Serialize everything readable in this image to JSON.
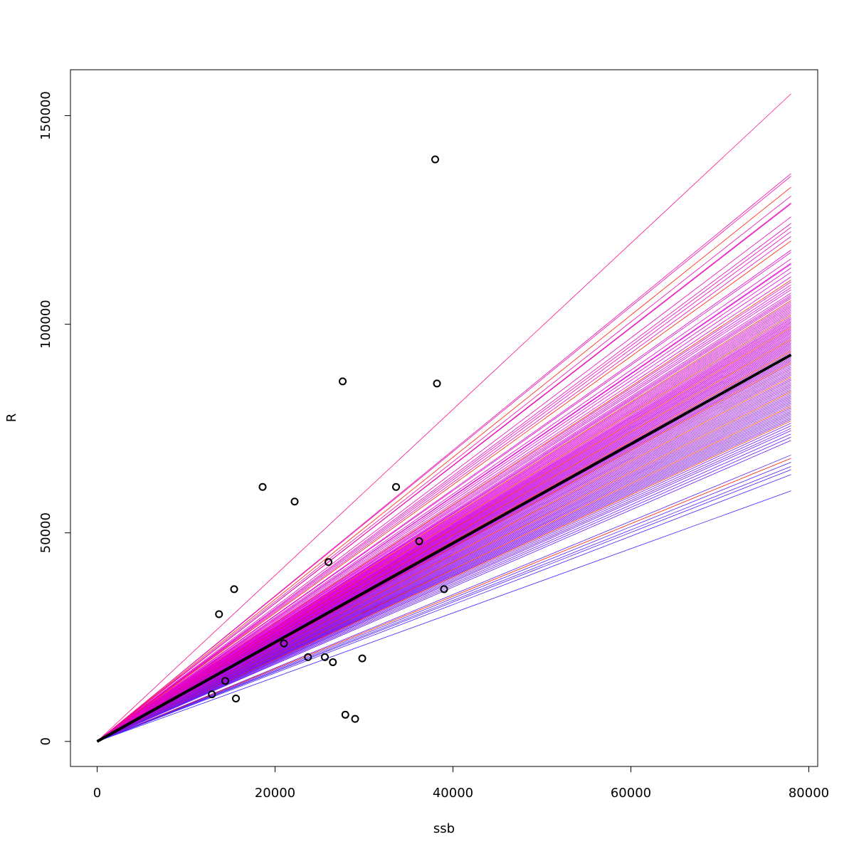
{
  "chart_data": {
    "type": "scatter",
    "title": "",
    "xlabel": "ssb",
    "ylabel": "R",
    "xlim": [
      -3000,
      81000
    ],
    "ylim": [
      -6000,
      161000
    ],
    "x_ticks": [
      0,
      20000,
      40000,
      60000,
      80000
    ],
    "y_ticks": [
      0,
      50000,
      100000,
      150000
    ],
    "x_tick_labels": [
      "0",
      "20000",
      "40000",
      "60000",
      "80000"
    ],
    "y_tick_labels": [
      "0",
      "50000",
      "100000",
      "150000"
    ],
    "grid": false,
    "legend": "none",
    "points": [
      {
        "x": 38000,
        "y": 139500
      },
      {
        "x": 27600,
        "y": 86300
      },
      {
        "x": 38200,
        "y": 85800
      },
      {
        "x": 18600,
        "y": 61000
      },
      {
        "x": 33600,
        "y": 61000
      },
      {
        "x": 22200,
        "y": 57500
      },
      {
        "x": 36200,
        "y": 48000
      },
      {
        "x": 26000,
        "y": 43000
      },
      {
        "x": 15400,
        "y": 36500
      },
      {
        "x": 39000,
        "y": 36500
      },
      {
        "x": 13700,
        "y": 30500
      },
      {
        "x": 21000,
        "y": 23500
      },
      {
        "x": 23700,
        "y": 20200
      },
      {
        "x": 25600,
        "y": 20200
      },
      {
        "x": 29800,
        "y": 19900
      },
      {
        "x": 26500,
        "y": 19000
      },
      {
        "x": 14400,
        "y": 14500
      },
      {
        "x": 12900,
        "y": 11300
      },
      {
        "x": 15600,
        "y": 10300
      },
      {
        "x": 27900,
        "y": 6400
      },
      {
        "x": 29000,
        "y": 5400
      }
    ],
    "fit_line": {
      "x_start": 0,
      "x_end": 78000,
      "slope": 1.188,
      "color": "#000000"
    },
    "bootstrap_lines": {
      "x_start": 0,
      "x_end": 78000,
      "slopes": [
        1.99,
        1.745,
        1.737,
        1.703,
        1.676,
        1.655,
        1.652,
        1.612,
        1.592,
        1.58,
        1.567,
        1.552,
        1.538,
        1.51,
        1.503,
        1.483,
        1.47,
        1.467,
        1.455,
        1.442,
        1.428,
        1.418,
        1.412,
        1.403,
        1.395,
        1.388,
        1.378,
        1.372,
        1.367,
        1.362,
        1.355,
        1.35,
        1.345,
        1.34,
        1.335,
        1.33,
        1.325,
        1.32,
        1.315,
        1.31,
        1.305,
        1.3,
        1.296,
        1.292,
        1.288,
        1.284,
        1.28,
        1.276,
        1.272,
        1.268,
        1.264,
        1.26,
        1.256,
        1.252,
        1.248,
        1.244,
        1.24,
        1.236,
        1.232,
        1.228,
        1.224,
        1.22,
        1.216,
        1.212,
        1.208,
        1.204,
        1.2,
        1.196,
        1.192,
        1.188,
        1.184,
        1.18,
        1.176,
        1.172,
        1.168,
        1.164,
        1.16,
        1.155,
        1.15,
        1.145,
        1.14,
        1.135,
        1.13,
        1.125,
        1.12,
        1.115,
        1.11,
        1.105,
        1.1,
        1.095,
        1.09,
        1.085,
        1.08,
        1.075,
        1.07,
        1.065,
        1.06,
        1.055,
        1.05,
        1.045,
        1.04,
        1.035,
        1.03,
        1.025,
        1.02,
        1.015,
        1.01,
        1.005,
        1.0,
        0.995,
        0.99,
        0.985,
        0.978,
        0.97,
        0.962,
        0.955,
        0.945,
        0.935,
        0.925,
        0.88,
        0.87,
        0.858,
        0.845,
        0.835,
        0.82,
        0.77
      ],
      "color_low": "#3b20ff",
      "color_high": "#ff1a00",
      "color_mid": "#dd00dd"
    }
  }
}
